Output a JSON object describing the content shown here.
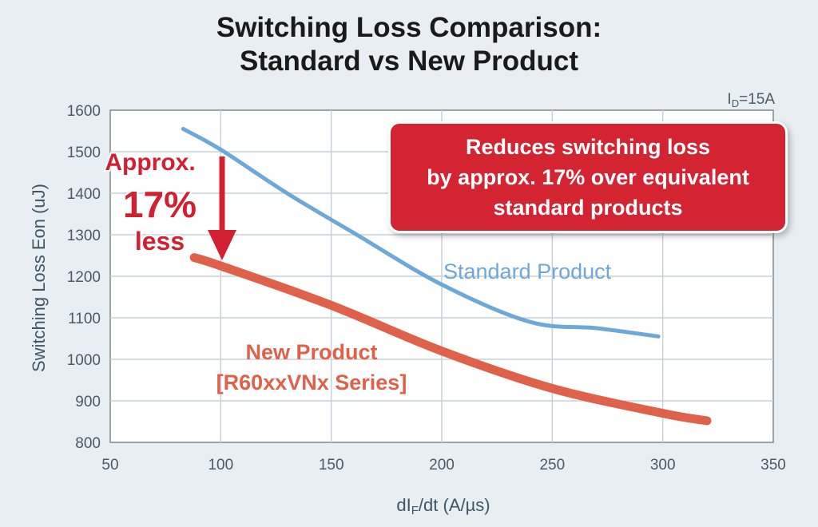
{
  "title": {
    "line1": "Switching Loss Comparison:",
    "line2": "Standard vs New Product"
  },
  "condition": {
    "prefix": "I",
    "sub": "D",
    "suffix": "=15A"
  },
  "callout": {
    "line1": "Reduces switching loss",
    "line2": "by approx. 17% over equivalent",
    "line3": "standard products"
  },
  "annotation": {
    "line1": "Approx.",
    "line2": "17%",
    "line3": "less",
    "color": "#d32030"
  },
  "chart_data": {
    "type": "line",
    "xlabel_prefix": "dI",
    "xlabel_sub": "F",
    "xlabel_suffix": "/dt (A/µs)",
    "ylabel": "Switching Loss Eon (uJ)",
    "xlim": [
      50,
      350
    ],
    "ylim": [
      800,
      1600
    ],
    "xticks": [
      50,
      100,
      150,
      200,
      250,
      300,
      350
    ],
    "yticks": [
      800,
      900,
      1000,
      1100,
      1200,
      1300,
      1400,
      1500,
      1600
    ],
    "grid": true,
    "series": [
      {
        "name": "Standard Product",
        "color": "#6fa8d8",
        "x": [
          83,
          100,
          130,
          160,
          200,
          240,
          270,
          298
        ],
        "y": [
          1555,
          1505,
          1400,
          1305,
          1180,
          1090,
          1075,
          1055
        ]
      },
      {
        "name_line1": "New Product",
        "name_line2": "[R60xxVNx Series]",
        "color": "#e0614a",
        "x": [
          88,
          100,
          150,
          200,
          250,
          300,
          320
        ],
        "y": [
          1245,
          1225,
          1130,
          1020,
          930,
          870,
          852
        ]
      }
    ]
  }
}
